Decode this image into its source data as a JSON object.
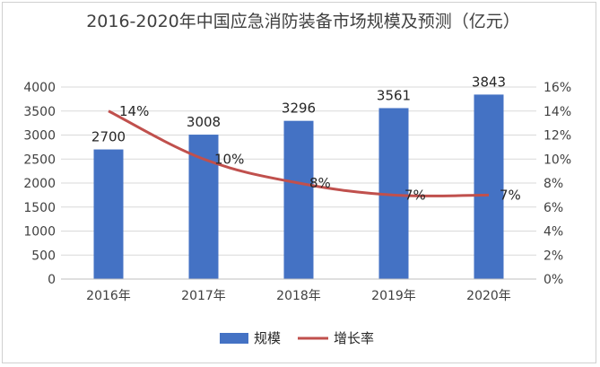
{
  "chart_data": {
    "type": "bar",
    "title": "2016-2020年中国应急消防装备市场规模及预测（亿元）",
    "categories": [
      "2016年",
      "2017年",
      "2018年",
      "2019年",
      "2020年"
    ],
    "series": [
      {
        "name": "规模",
        "type": "bar",
        "axis": "left",
        "color": "#4472c4",
        "values": [
          2700,
          3008,
          3296,
          3561,
          3843
        ],
        "labels": [
          "2700",
          "3008",
          "3296",
          "3561",
          "3843"
        ]
      },
      {
        "name": "增长率",
        "type": "line",
        "axis": "right",
        "color": "#c0504d",
        "values": [
          14,
          10,
          8,
          7,
          7
        ],
        "labels": [
          "14%",
          "10%",
          "8%",
          "7%",
          "7%"
        ]
      }
    ],
    "y_left": {
      "min": 0,
      "max": 4000,
      "ticks": [
        "0",
        "500",
        "1000",
        "1500",
        "2000",
        "2500",
        "3000",
        "3500",
        "4000"
      ]
    },
    "y_right": {
      "min": 0,
      "max": 16,
      "ticks": [
        "0%",
        "2%",
        "4%",
        "6%",
        "8%",
        "10%",
        "12%",
        "14%",
        "16%"
      ]
    },
    "grid": "horizontal",
    "legend": "bottom",
    "axis_color": "#404040"
  }
}
